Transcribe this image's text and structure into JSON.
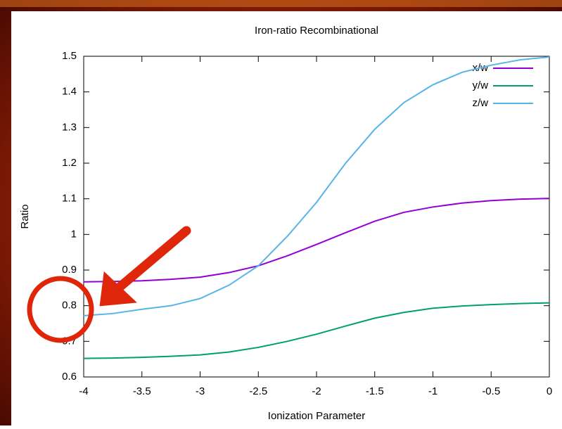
{
  "chart_data": {
    "type": "line",
    "title": "Iron-ratio Recombinational",
    "x_label": "Ionization Parameter",
    "y_label": "Ratio",
    "x": [
      -4,
      -3.75,
      -3.5,
      -3.25,
      -3,
      -2.75,
      -2.5,
      -2.25,
      -2,
      -1.75,
      -1.5,
      -1.25,
      -1,
      -0.75,
      -0.5,
      -0.25,
      0
    ],
    "series": [
      {
        "name": "x/w",
        "color": "#9400d3",
        "values": [
          0.867,
          0.868,
          0.87,
          0.874,
          0.88,
          0.893,
          0.912,
          0.94,
          0.972,
          1.005,
          1.037,
          1.062,
          1.077,
          1.088,
          1.095,
          1.099,
          1.101
        ]
      },
      {
        "name": "y/w",
        "color": "#009e73",
        "values": [
          0.652,
          0.653,
          0.655,
          0.658,
          0.662,
          0.67,
          0.683,
          0.7,
          0.72,
          0.743,
          0.765,
          0.781,
          0.793,
          0.799,
          0.803,
          0.806,
          0.808
        ]
      },
      {
        "name": "z/w",
        "color": "#56b4e9",
        "values": [
          0.772,
          0.778,
          0.79,
          0.8,
          0.82,
          0.858,
          0.912,
          0.995,
          1.09,
          1.2,
          1.295,
          1.37,
          1.42,
          1.455,
          1.475,
          1.49,
          1.498
        ]
      }
    ],
    "xlim": [
      -4,
      0
    ],
    "xticks": [
      -4,
      -3.5,
      -3,
      -2.5,
      -2,
      -1.5,
      -1,
      -0.5,
      0
    ],
    "ylim": [
      0.6,
      1.5
    ],
    "yticks": [
      0.6,
      0.7,
      0.8,
      0.9,
      1,
      1.1,
      1.2,
      1.3,
      1.4,
      1.5
    ],
    "grid": false,
    "legend": "top-right"
  }
}
